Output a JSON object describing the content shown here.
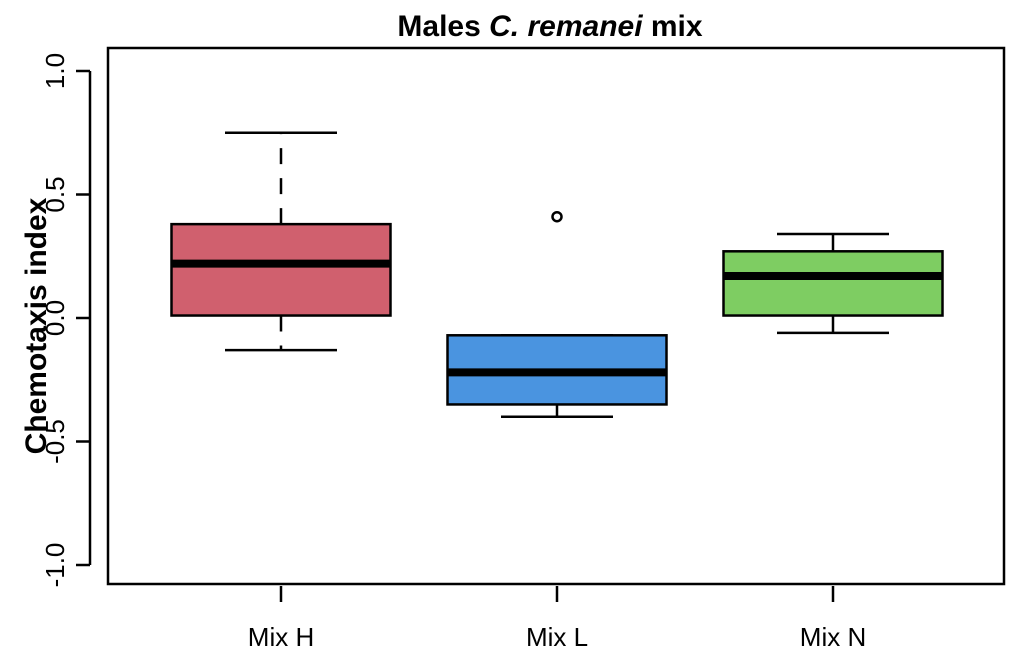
{
  "chart_data": {
    "type": "boxplot",
    "title_parts": [
      {
        "text": "Males ",
        "italic": false
      },
      {
        "text": "C. remanei",
        "italic": true
      },
      {
        "text": " mix",
        "italic": false
      }
    ],
    "xlabel": "",
    "ylabel": "Chemotaxis index",
    "ylim": [
      -1.0,
      1.0
    ],
    "yticks": [
      -1.0,
      -0.5,
      0.0,
      0.5,
      1.0
    ],
    "ytick_labels": [
      "-1.0",
      "-0.5",
      "0.0",
      "0.5",
      "1.0"
    ],
    "categories": [
      "Mix H",
      "Mix L",
      "Mix N"
    ],
    "series": [
      {
        "category": "Mix H",
        "color": "#d0606e",
        "whisker_low": -0.13,
        "q1": 0.01,
        "median": 0.22,
        "q3": 0.38,
        "whisker_high": 0.75,
        "outliers": [],
        "upper_whisker_dashed": true,
        "lower_whisker_dashed": true
      },
      {
        "category": "Mix L",
        "color": "#4a94e0",
        "whisker_low": -0.4,
        "q1": -0.35,
        "median": -0.22,
        "q3": -0.07,
        "whisker_high": -0.07,
        "outliers": [
          0.41
        ],
        "upper_whisker_dashed": false,
        "lower_whisker_dashed": false
      },
      {
        "category": "Mix N",
        "color": "#7ecd62",
        "whisker_low": -0.06,
        "q1": 0.01,
        "median": 0.17,
        "q3": 0.27,
        "whisker_high": 0.34,
        "outliers": [],
        "upper_whisker_dashed": false,
        "lower_whisker_dashed": false
      }
    ],
    "grid": false,
    "legend": "none"
  }
}
